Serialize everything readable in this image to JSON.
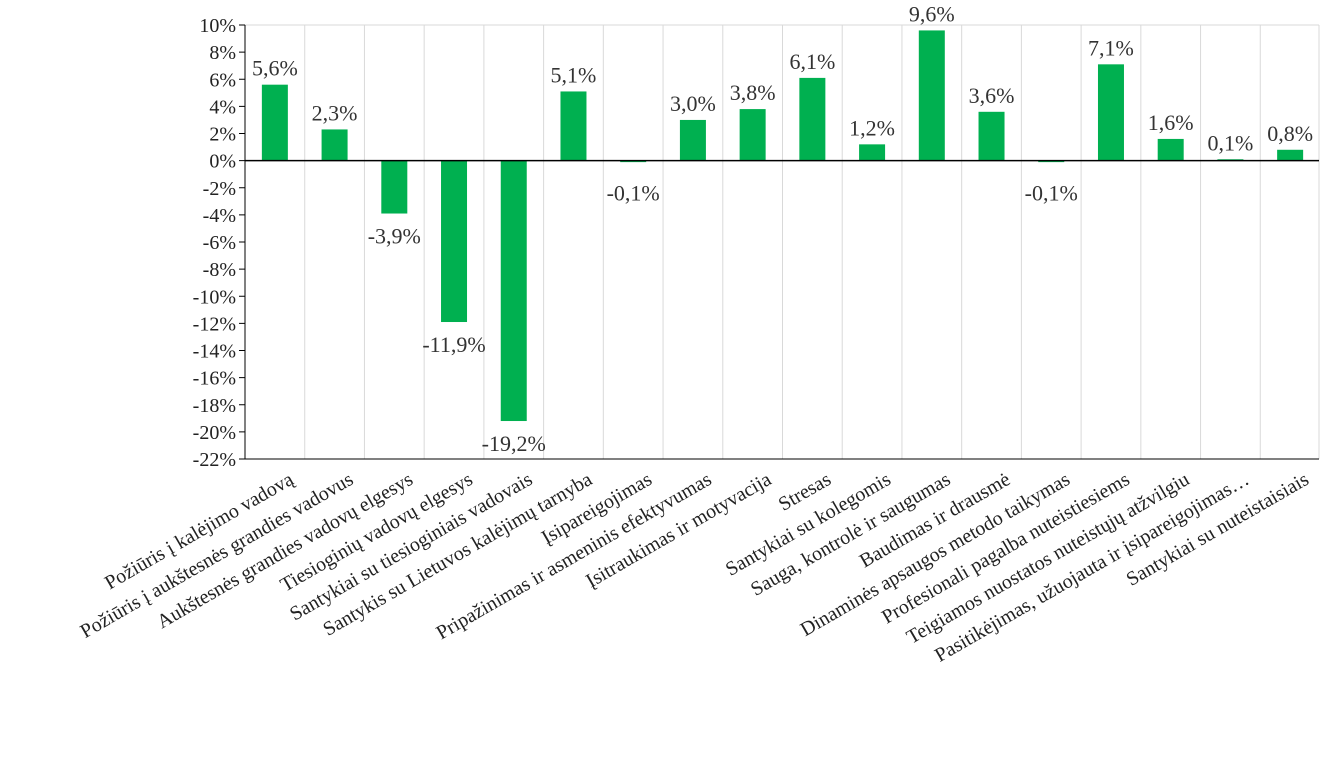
{
  "chart_data": {
    "type": "bar",
    "categories": [
      "Požiūris į kalėjimo vadovą",
      "Požiūris į aukštesnės grandies vadovus",
      "Aukštesnės grandies vadovų elgesys",
      "Tiesioginių vadovų elgesys",
      "Santykiai su tiesioginiais vadovais",
      "Santykis su Lietuvos kalėjimų tarnyba",
      "Įsipareigojimas",
      "Pripažinimas ir asmeninis efektyvumas",
      "Įsitraukimas ir motyvacija",
      "Stresas",
      "Santykiai su kolegomis",
      "Sauga, kontrolė ir saugumas",
      "Baudimas ir drausmė",
      "Dinaminės apsaugos metodo taikymas",
      "Profesionali pagalba nuteistiesiems",
      "Teigiamos nuostatos nuteistųjų atžvilgiu",
      "Pasitikėjimas, užuojauta ir įsipareigojimas…",
      "Santykiai su nuteistaisiais"
    ],
    "values": [
      5.6,
      2.3,
      -3.9,
      -11.9,
      -19.2,
      5.1,
      -0.1,
      3.0,
      3.8,
      6.1,
      1.2,
      9.6,
      3.6,
      -0.1,
      7.1,
      1.6,
      0.1,
      0.8
    ],
    "data_labels": [
      "5,6%",
      "2,3%",
      "-3,9%",
      "-11,9%",
      "-19,2%",
      "5,1%",
      "-0,1%",
      "3,0%",
      "3,8%",
      "6,1%",
      "1,2%",
      "9,6%",
      "3,6%",
      "-0,1%",
      "7,1%",
      "1,6%",
      "0,1%",
      "0,8%"
    ],
    "yticks": [
      "10%",
      "8%",
      "6%",
      "4%",
      "2%",
      "0%",
      "-2%",
      "-4%",
      "-6%",
      "-8%",
      "-10%",
      "-12%",
      "-14%",
      "-16%",
      "-18%",
      "-20%",
      "-22%"
    ],
    "ylim": [
      -22,
      10
    ],
    "title": "",
    "xlabel": "",
    "ylabel": "",
    "grid": "vertical category lines",
    "legend": "none",
    "bar_color": "#00b050",
    "grid_color": "#d9d9d9",
    "axis_color": "#000000"
  }
}
